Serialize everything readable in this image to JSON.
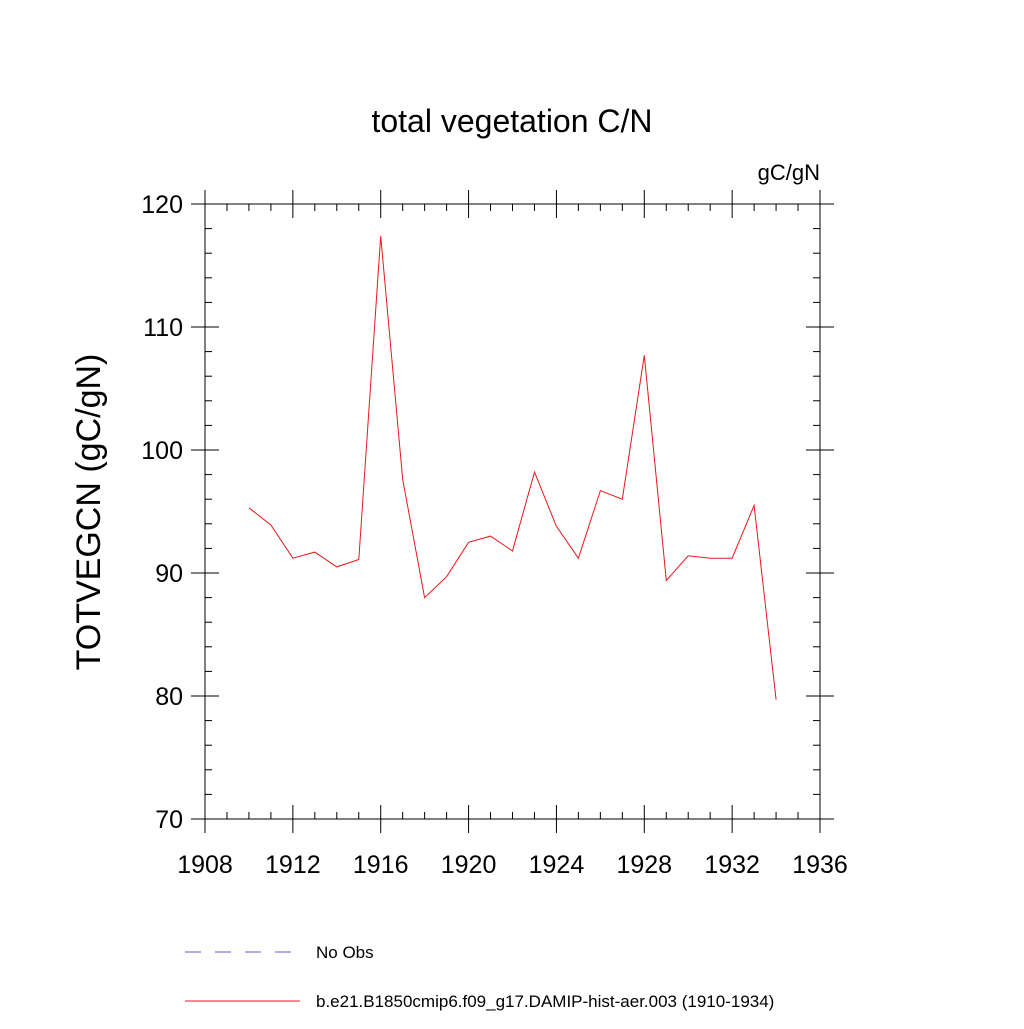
{
  "chart_data": {
    "type": "line",
    "title": "total vegetation C/N",
    "units_label": "gC/gN",
    "xlabel": "",
    "ylabel": "TOTVEGCN  (gC/gN)",
    "xlim": [
      1908,
      1936
    ],
    "ylim": [
      70,
      120
    ],
    "x_ticks": [
      1908,
      1912,
      1916,
      1920,
      1924,
      1928,
      1932,
      1936
    ],
    "y_ticks": [
      70,
      80,
      90,
      100,
      110,
      120
    ],
    "grid": false,
    "legend_position": "bottom",
    "series": [
      {
        "name": "No Obs",
        "color": "#6a5acd",
        "dash": "dashed",
        "x": [],
        "y": []
      },
      {
        "name": "b.e21.B1850cmip6.f09_g17.DAMIP-hist-aer.003 (1910-1934)",
        "color": "#e41a1c",
        "dash": "solid",
        "x": [
          1910,
          1911,
          1912,
          1913,
          1914,
          1915,
          1916,
          1917,
          1918,
          1919,
          1920,
          1921,
          1922,
          1923,
          1924,
          1925,
          1926,
          1927,
          1928,
          1929,
          1930,
          1931,
          1932,
          1933,
          1934
        ],
        "y": [
          95.3,
          93.9,
          91.2,
          91.7,
          90.5,
          91.1,
          117.4,
          97.6,
          88.0,
          89.7,
          92.5,
          93.0,
          91.8,
          98.2,
          93.8,
          91.2,
          96.7,
          96.0,
          107.7,
          89.4,
          91.4,
          91.2,
          91.2,
          95.5,
          79.7
        ]
      }
    ]
  }
}
